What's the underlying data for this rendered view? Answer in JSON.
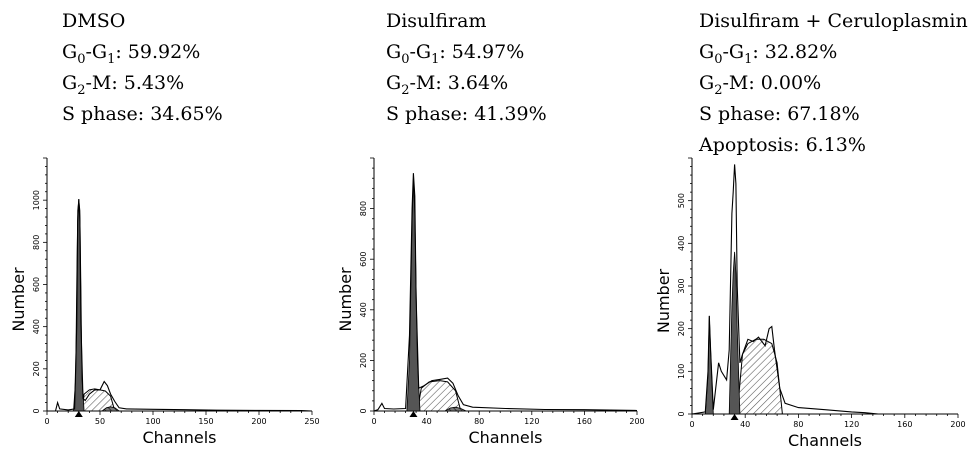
{
  "chart_data": [
    {
      "type": "area",
      "panel": "DMSO",
      "annotations": [
        {
          "text": "DMSO"
        },
        {
          "label": "G",
          "sub1": "0",
          "dash": "-G",
          "sub2": "1",
          "value": ": 59.92%"
        },
        {
          "label": "G",
          "sub1": "2",
          "dash": "-M",
          "sub2": "",
          "value": ": 5.43%"
        },
        {
          "text": "S phase: 34.65%"
        }
      ],
      "xlabel": "Channels",
      "ylabel": "Number",
      "xlim": [
        0,
        250
      ],
      "ylim": [
        0,
        1200
      ],
      "xticks": [
        0,
        50,
        100,
        150,
        200,
        250
      ],
      "yticks": [
        0,
        200,
        400,
        600,
        800,
        1000
      ],
      "marker_x": 30,
      "histogram": [
        [
          0,
          0
        ],
        [
          8,
          0
        ],
        [
          10,
          40
        ],
        [
          12,
          10
        ],
        [
          20,
          5
        ],
        [
          26,
          10
        ],
        [
          28,
          400
        ],
        [
          29,
          900
        ],
        [
          30,
          1005
        ],
        [
          31,
          900
        ],
        [
          32,
          420
        ],
        [
          34,
          60
        ],
        [
          36,
          50
        ],
        [
          40,
          80
        ],
        [
          45,
          100
        ],
        [
          50,
          100
        ],
        [
          54,
          140
        ],
        [
          57,
          120
        ],
        [
          60,
          80
        ],
        [
          64,
          45
        ],
        [
          68,
          15
        ],
        [
          75,
          10
        ],
        [
          100,
          8
        ],
        [
          130,
          6
        ],
        [
          160,
          4
        ],
        [
          200,
          3
        ],
        [
          240,
          2
        ],
        [
          250,
          0
        ]
      ],
      "g1_peak": [
        [
          25,
          0
        ],
        [
          27,
          150
        ],
        [
          28,
          600
        ],
        [
          29,
          950
        ],
        [
          30,
          1005
        ],
        [
          31,
          950
        ],
        [
          32,
          600
        ],
        [
          33,
          150
        ],
        [
          35,
          0
        ]
      ],
      "s_phase": [
        [
          33,
          0
        ],
        [
          35,
          80
        ],
        [
          40,
          100
        ],
        [
          45,
          105
        ],
        [
          50,
          100
        ],
        [
          55,
          95
        ],
        [
          60,
          70
        ],
        [
          64,
          0
        ]
      ],
      "g2_peak": [
        [
          52,
          0
        ],
        [
          56,
          15
        ],
        [
          60,
          20
        ],
        [
          64,
          15
        ],
        [
          68,
          0
        ]
      ]
    },
    {
      "type": "area",
      "panel": "Disulfiram",
      "annotations": [
        {
          "text": "Disulfiram"
        },
        {
          "label": "G",
          "sub1": "0",
          "dash": "-G",
          "sub2": "1",
          "value": ": 54.97%"
        },
        {
          "label": "G",
          "sub1": "2",
          "dash": "-M",
          "sub2": "",
          "value": ": 3.64%"
        },
        {
          "text": "S phase: 41.39%"
        }
      ],
      "xlabel": "Channels",
      "ylabel": "Number",
      "xlim": [
        0,
        200
      ],
      "ylim": [
        0,
        1000
      ],
      "xticks": [
        0,
        40,
        80,
        120,
        160,
        200
      ],
      "yticks": [
        0,
        200,
        400,
        600,
        800
      ],
      "marker_x": 30,
      "histogram": [
        [
          0,
          0
        ],
        [
          3,
          5
        ],
        [
          6,
          30
        ],
        [
          8,
          10
        ],
        [
          15,
          8
        ],
        [
          24,
          10
        ],
        [
          27,
          300
        ],
        [
          29,
          800
        ],
        [
          30,
          940
        ],
        [
          31,
          850
        ],
        [
          32,
          450
        ],
        [
          34,
          90
        ],
        [
          38,
          100
        ],
        [
          44,
          120
        ],
        [
          50,
          125
        ],
        [
          56,
          130
        ],
        [
          60,
          110
        ],
        [
          64,
          60
        ],
        [
          68,
          25
        ],
        [
          75,
          15
        ],
        [
          100,
          10
        ],
        [
          130,
          6
        ],
        [
          160,
          5
        ],
        [
          200,
          2
        ]
      ],
      "g1_peak": [
        [
          25,
          0
        ],
        [
          27,
          200
        ],
        [
          29,
          750
        ],
        [
          30,
          920
        ],
        [
          31,
          780
        ],
        [
          33,
          200
        ],
        [
          35,
          0
        ]
      ],
      "s_phase": [
        [
          33,
          0
        ],
        [
          36,
          90
        ],
        [
          42,
          115
        ],
        [
          50,
          120
        ],
        [
          56,
          115
        ],
        [
          62,
          80
        ],
        [
          66,
          0
        ]
      ],
      "g2_peak": [
        [
          54,
          0
        ],
        [
          58,
          12
        ],
        [
          62,
          15
        ],
        [
          66,
          10
        ],
        [
          70,
          0
        ]
      ]
    },
    {
      "type": "area",
      "panel": "Disulfiram + Ceruloplasmin",
      "annotations": [
        {
          "text": "Disulfiram + Ceruloplasmin"
        },
        {
          "label": "G",
          "sub1": "0",
          "dash": "-G",
          "sub2": "1",
          "value": ": 32.82%"
        },
        {
          "label": "G",
          "sub1": "2",
          "dash": "-M",
          "sub2": "",
          "value": ": 0.00%"
        },
        {
          "text": "S phase: 67.18%"
        },
        {
          "text": "Apoptosis: 6.13%"
        }
      ],
      "xlabel": "Channels",
      "ylabel": "Number",
      "xlim": [
        0,
        200
      ],
      "ylim": [
        0,
        600
      ],
      "xticks": [
        0,
        40,
        80,
        120,
        160,
        200
      ],
      "yticks": [
        0,
        100,
        200,
        300,
        400,
        500
      ],
      "marker_x": 32,
      "histogram": [
        [
          0,
          0
        ],
        [
          10,
          5
        ],
        [
          12,
          100
        ],
        [
          13,
          230
        ],
        [
          14,
          150
        ],
        [
          16,
          10
        ],
        [
          20,
          120
        ],
        [
          22,
          100
        ],
        [
          26,
          80
        ],
        [
          28,
          150
        ],
        [
          30,
          470
        ],
        [
          31,
          520
        ],
        [
          32,
          585
        ],
        [
          33,
          540
        ],
        [
          34,
          300
        ],
        [
          36,
          120
        ],
        [
          38,
          140
        ],
        [
          42,
          175
        ],
        [
          46,
          170
        ],
        [
          50,
          180
        ],
        [
          55,
          160
        ],
        [
          58,
          200
        ],
        [
          60,
          205
        ],
        [
          62,
          150
        ],
        [
          66,
          60
        ],
        [
          70,
          25
        ],
        [
          80,
          15
        ],
        [
          100,
          10
        ],
        [
          120,
          5
        ],
        [
          130,
          3
        ],
        [
          140,
          0
        ]
      ],
      "apoptosis": [
        [
          10,
          0
        ],
        [
          12,
          90
        ],
        [
          13,
          230
        ],
        [
          14,
          150
        ],
        [
          16,
          0
        ]
      ],
      "g1_peak": [
        [
          28,
          0
        ],
        [
          30,
          250
        ],
        [
          31,
          330
        ],
        [
          32,
          380
        ],
        [
          33,
          330
        ],
        [
          34,
          200
        ],
        [
          36,
          0
        ]
      ],
      "s_phase": [
        [
          34,
          0
        ],
        [
          38,
          140
        ],
        [
          42,
          165
        ],
        [
          48,
          175
        ],
        [
          54,
          175
        ],
        [
          60,
          165
        ],
        [
          64,
          120
        ],
        [
          68,
          0
        ]
      ],
      "g2_peak": []
    }
  ]
}
